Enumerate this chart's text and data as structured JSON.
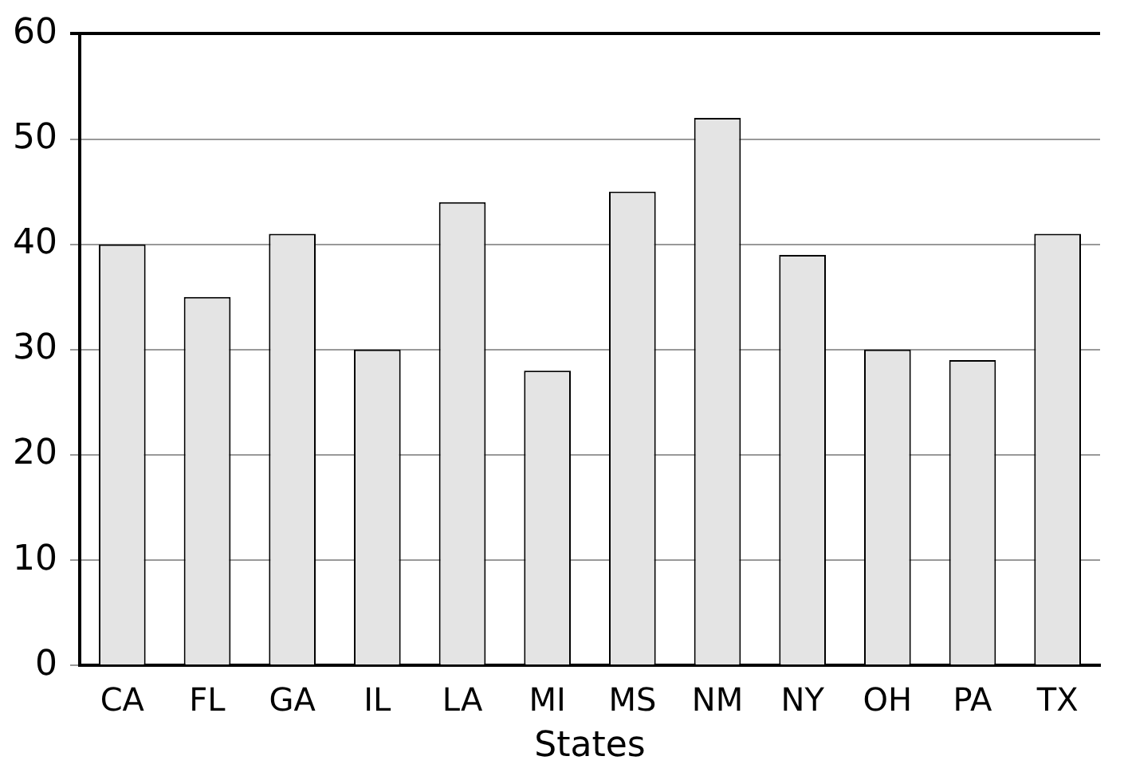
{
  "chart_data": {
    "type": "bar",
    "xlabel": "States",
    "categories": [
      "CA",
      "FL",
      "GA",
      "IL",
      "LA",
      "MI",
      "MS",
      "NM",
      "NY",
      "OH",
      "PA",
      "TX"
    ],
    "values": [
      40,
      35,
      41,
      30,
      44,
      28,
      45,
      52,
      39,
      30,
      29,
      41
    ],
    "color": "#e4e4e4",
    "ylim": [
      0,
      60
    ],
    "yticks": [
      0,
      10,
      20,
      30,
      40,
      50,
      60
    ],
    "grid": "y"
  }
}
